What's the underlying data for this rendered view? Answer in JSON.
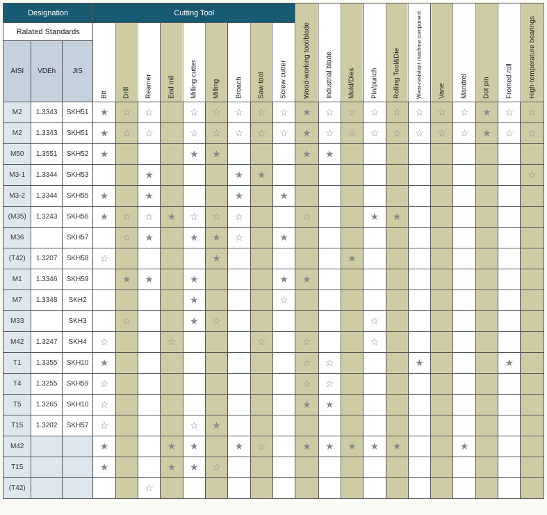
{
  "headers": {
    "designation": "Designation",
    "cutting_tool": "Cutting Tool",
    "related_standards": "Ralated Standards",
    "std_cols": [
      "AISI",
      "VDEh",
      "JIS"
    ],
    "tool_cols": [
      {
        "label": "Bit",
        "bg": "white"
      },
      {
        "label": "Drill",
        "bg": "green"
      },
      {
        "label": "Reamer",
        "bg": "white"
      },
      {
        "label": "End mil",
        "bg": "green"
      },
      {
        "label": "Milling cutter",
        "bg": "white"
      },
      {
        "label": "Milling",
        "bg": "green"
      },
      {
        "label": "Broach",
        "bg": "white"
      },
      {
        "label": "Saw tool",
        "bg": "green"
      },
      {
        "label": "Screw cutter",
        "bg": "white"
      },
      {
        "label": "Wood-working tool/blade",
        "bg": "green"
      },
      {
        "label": "Industrial blade",
        "bg": "white"
      },
      {
        "label": "Mold/Dies",
        "bg": "green"
      },
      {
        "label": "Pin/punch",
        "bg": "white"
      },
      {
        "label": "Rolling Tool&Die",
        "bg": "green"
      },
      {
        "label": "Wear-resistant machine component",
        "bg": "white",
        "small": true
      },
      {
        "label": "Vane",
        "bg": "green"
      },
      {
        "label": "Mandrel",
        "bg": "white"
      },
      {
        "label": "Dot pin",
        "bg": "green"
      },
      {
        "label": "Fromed roll",
        "bg": "white"
      },
      {
        "label": "High-temperature bearings",
        "bg": "green"
      }
    ]
  },
  "col_widths": {
    "aisi": 40,
    "vdeh": 44,
    "jis": 44,
    "tool": 32
  },
  "colors": {
    "teal": "#185a72",
    "green": "#cfcca5",
    "blue": "#c5d1dd",
    "blue2": "#dfe7ee",
    "border": "#555",
    "star": "#999"
  },
  "stars": {
    "solid": "★",
    "open": "☆"
  },
  "rows": [
    {
      "aisi": "M2",
      "vdeh": "1.3343",
      "jis": "SKH51",
      "cells": [
        "s",
        "o",
        "o",
        "",
        "o",
        "o",
        "o",
        "o",
        "o",
        "s",
        "o",
        "o",
        "o",
        "o",
        "o",
        "o",
        "o",
        "s",
        "o",
        "o"
      ]
    },
    {
      "aisi": "M2",
      "vdeh": "1.3343",
      "jis": "SKH51",
      "cells": [
        "s",
        "o",
        "o",
        "",
        "o",
        "o",
        "o",
        "o",
        "o",
        "s",
        "o",
        "o",
        "o",
        "o",
        "o",
        "o",
        "o",
        "s",
        "o",
        "o"
      ]
    },
    {
      "aisi": "M50",
      "vdeh": "1.3551",
      "jis": "SKH52",
      "cells": [
        "s",
        "",
        "",
        "",
        "s",
        "s",
        "",
        "",
        "",
        "s",
        "s",
        "",
        "",
        "",
        "",
        "",
        "",
        "",
        "",
        ""
      ]
    },
    {
      "aisi": "M3-1",
      "vdeh": "1.3344",
      "jis": "SKH53",
      "cells": [
        "",
        "",
        "s",
        "",
        "",
        "",
        "s",
        "s",
        "",
        "",
        "",
        "",
        "",
        "",
        "",
        "",
        "",
        "",
        "",
        "o"
      ]
    },
    {
      "aisi": "M3-2",
      "vdeh": "1.3344",
      "jis": "SKH55",
      "cells": [
        "s",
        "",
        "s",
        "",
        "",
        "",
        "s",
        "",
        "s",
        "",
        "",
        "",
        "",
        "",
        "",
        "",
        "",
        "",
        "",
        ""
      ]
    },
    {
      "aisi": "(M35)",
      "vdeh": "1.3243",
      "jis": "SKH56",
      "cells": [
        "s",
        "o",
        "o",
        "s",
        "o",
        "o",
        "o",
        "",
        "",
        "o",
        "",
        "",
        "s",
        "s",
        "",
        "",
        "",
        "",
        "",
        ""
      ]
    },
    {
      "aisi": "M36",
      "vdeh": "",
      "jis": "SKH57",
      "cells": [
        "",
        "o",
        "s",
        "",
        "s",
        "s",
        "o",
        "",
        "s",
        "",
        "",
        "",
        "",
        "",
        "",
        "",
        "",
        "",
        "",
        ""
      ]
    },
    {
      "aisi": "(T42)",
      "vdeh": "1.3207",
      "jis": "SKH58",
      "cells": [
        "o",
        "",
        "",
        "",
        "",
        "s",
        "",
        "",
        "",
        "",
        "",
        "s",
        "",
        "",
        "",
        "",
        "",
        "",
        "",
        ""
      ]
    },
    {
      "aisi": "M1",
      "vdeh": "1.3346",
      "jis": "SKH59",
      "cells": [
        "",
        "s",
        "s",
        "",
        "s",
        "",
        "",
        "",
        "s",
        "s",
        "",
        "",
        "",
        "",
        "",
        "",
        "",
        "",
        "",
        ""
      ]
    },
    {
      "aisi": "M7",
      "vdeh": "1.3348",
      "jis": "SKH2",
      "cells": [
        "",
        "",
        "",
        "",
        "s",
        "",
        "",
        "",
        "o",
        "",
        "",
        "",
        "",
        "",
        "",
        "",
        "",
        "",
        "",
        ""
      ]
    },
    {
      "aisi": "M33",
      "vdeh": "",
      "jis": "SKH3",
      "cells": [
        "",
        "o",
        "",
        "",
        "s",
        "o",
        "",
        "",
        "",
        "",
        "",
        "",
        "o",
        "",
        "",
        "",
        "",
        "",
        "",
        ""
      ]
    },
    {
      "aisi": "M42",
      "vdeh": "1.3247",
      "jis": "SKH4",
      "cells": [
        "o",
        "",
        "",
        "o",
        "",
        "",
        "",
        "o",
        "",
        "o",
        "",
        "",
        "o",
        "",
        "",
        "",
        "",
        "",
        "",
        ""
      ]
    },
    {
      "aisi": "T1",
      "vdeh": "1.3355",
      "jis": "SKH10",
      "cells": [
        "s",
        "",
        "",
        "",
        "",
        "",
        "",
        "",
        "",
        "o",
        "o",
        "",
        "",
        "",
        "s",
        "",
        "",
        "",
        "s",
        ""
      ]
    },
    {
      "aisi": "T4",
      "vdeh": "1.3255",
      "jis": "SKH59",
      "cells": [
        "o",
        "",
        "",
        "",
        "",
        "",
        "",
        "",
        "",
        "o",
        "o",
        "",
        "",
        "",
        "",
        "",
        "",
        "",
        "",
        ""
      ]
    },
    {
      "aisi": "T5",
      "vdeh": "1.3265",
      "jis": "SKH10",
      "cells": [
        "o",
        "",
        "",
        "",
        "",
        "",
        "",
        "",
        "",
        "s",
        "s",
        "",
        "",
        "",
        "",
        "",
        "",
        "",
        "",
        ""
      ]
    },
    {
      "aisi": "T15",
      "vdeh": "1.3202",
      "jis": "SKH57",
      "cells": [
        "o",
        "",
        "",
        "",
        "o",
        "s",
        "",
        "",
        "",
        "",
        "",
        "",
        "",
        "",
        "",
        "",
        "",
        "",
        "",
        ""
      ]
    },
    {
      "aisi": "M42",
      "vdeh": "",
      "jis": "",
      "blank_std": true,
      "cells": [
        "s",
        "",
        "",
        "s",
        "s",
        "",
        "s",
        "o",
        "",
        "s",
        "s",
        "s",
        "s",
        "s",
        "",
        "",
        "s",
        "",
        "",
        ""
      ]
    },
    {
      "aisi": "T15",
      "vdeh": "",
      "jis": "",
      "blank_std": true,
      "cells": [
        "s",
        "",
        "",
        "s",
        "s",
        "o",
        "",
        "",
        "",
        "",
        "",
        "",
        "",
        "",
        "",
        "",
        "",
        "",
        "",
        ""
      ]
    },
    {
      "aisi": "(T42)",
      "vdeh": "",
      "jis": "",
      "blank_std": true,
      "cells": [
        "",
        "",
        "o",
        "",
        "",
        "",
        "",
        "",
        "",
        "",
        "",
        "",
        "",
        "",
        "",
        "",
        "",
        "",
        "",
        ""
      ]
    }
  ]
}
